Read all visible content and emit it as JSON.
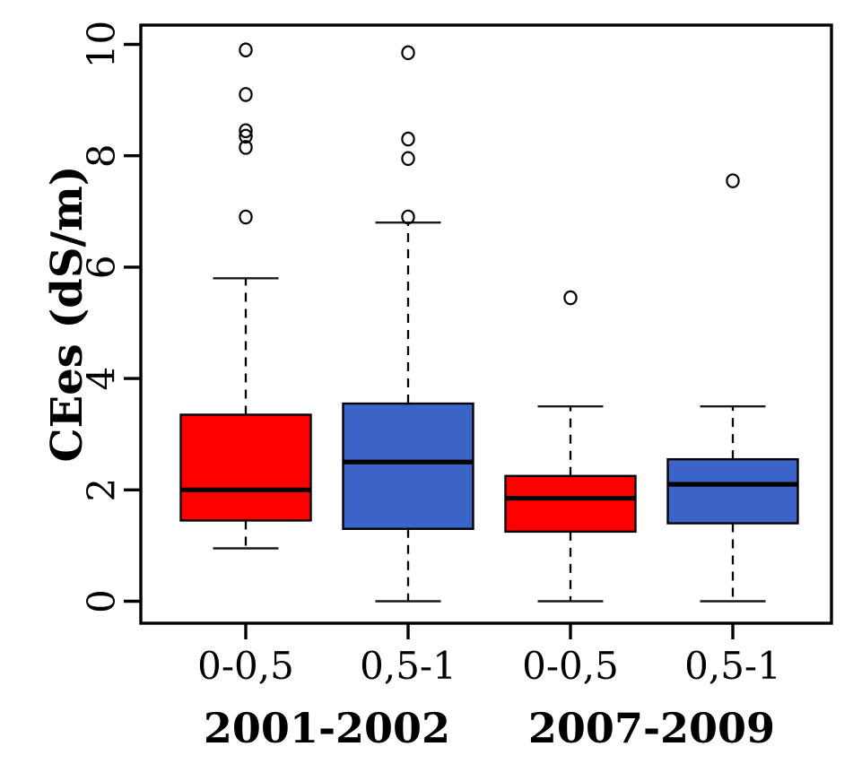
{
  "figure": {
    "background": "#ffffff",
    "frame_color": "#000000"
  },
  "chart_data": {
    "type": "boxplot",
    "title": "",
    "xlabel": "",
    "ylabel": "CEes (dS/m)",
    "ylim": [
      0,
      10
    ],
    "yticks": [
      0,
      2,
      4,
      6,
      8,
      10
    ],
    "grid": false,
    "legend": "none",
    "categories": [
      "0-0,5",
      "0,5-1",
      "0-0,5",
      "0,5-1"
    ],
    "group_labels": [
      "2001-2002",
      "2007-2009"
    ],
    "series": [
      {
        "name": "2001-2002 0-0,5",
        "group": "2001-2002",
        "depth": "0-0,5",
        "color": "#FF0000",
        "whisker_low": 0.95,
        "q1": 1.45,
        "median": 2.0,
        "q3": 3.35,
        "whisker_high": 5.8,
        "outliers": [
          6.9,
          8.15,
          8.35,
          8.45,
          9.1,
          9.9
        ]
      },
      {
        "name": "2001-2002 0,5-1",
        "group": "2001-2002",
        "depth": "0,5-1",
        "color": "#3C63C8",
        "whisker_low": 0.0,
        "q1": 1.3,
        "median": 2.5,
        "q3": 3.55,
        "whisker_high": 6.8,
        "outliers": [
          6.9,
          7.95,
          8.3,
          9.85
        ]
      },
      {
        "name": "2007-2009 0-0,5",
        "group": "2007-2009",
        "depth": "0-0,5",
        "color": "#FF0000",
        "whisker_low": 0.0,
        "q1": 1.25,
        "median": 1.85,
        "q3": 2.25,
        "whisker_high": 3.5,
        "outliers": [
          5.45
        ]
      },
      {
        "name": "2007-2009 0,5-1",
        "group": "2007-2009",
        "depth": "0,5-1",
        "color": "#3C63C8",
        "whisker_low": 0.0,
        "q1": 1.4,
        "median": 2.1,
        "q3": 2.55,
        "whisker_high": 3.5,
        "outliers": [
          7.55
        ]
      }
    ]
  }
}
